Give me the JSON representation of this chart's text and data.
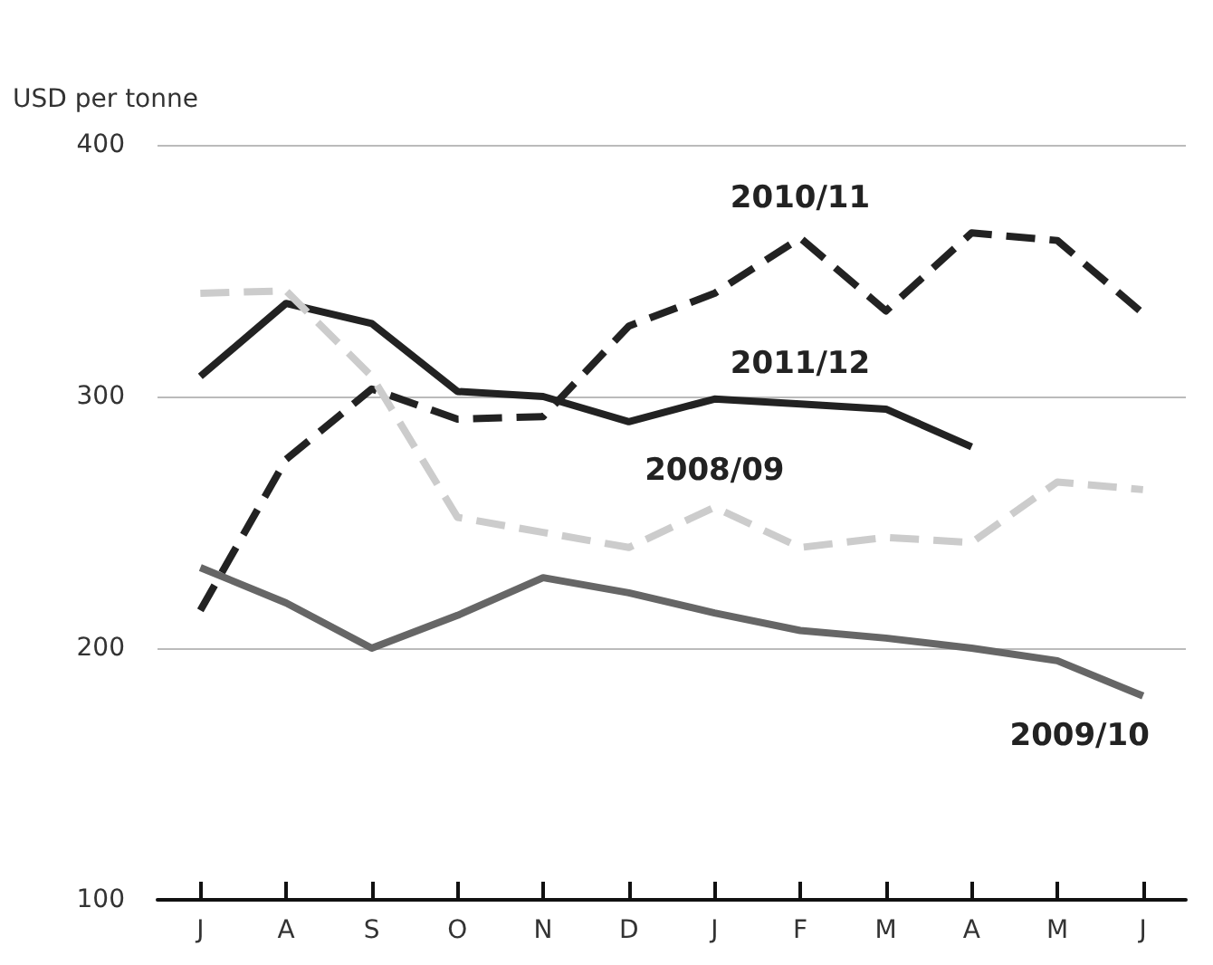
{
  "chart_data": {
    "type": "line",
    "ylabel": "USD per tonne",
    "categories": [
      "J",
      "A",
      "S",
      "O",
      "N",
      "D",
      "J",
      "F",
      "M",
      "A",
      "M",
      "J"
    ],
    "series": [
      {
        "name": "2010/11",
        "color": "#222222",
        "line_style": "dashed",
        "values": [
          215,
          275,
          303,
          291,
          292,
          328,
          341,
          363,
          334,
          365,
          362,
          333
        ]
      },
      {
        "name": "2011/12",
        "color": "#222222",
        "line_style": "solid",
        "values": [
          308,
          337,
          329,
          302,
          300,
          290,
          299,
          297,
          295,
          280,
          null,
          null
        ]
      },
      {
        "name": "2008/09",
        "color": "#cccccc",
        "line_style": "dashed",
        "values": [
          341,
          342,
          308,
          252,
          246,
          240,
          256,
          240,
          244,
          242,
          266,
          263
        ]
      },
      {
        "name": "2009/10",
        "color": "#666666",
        "line_style": "solid",
        "values": [
          232,
          218,
          200,
          213,
          228,
          222,
          214,
          207,
          204,
          200,
          195,
          181
        ]
      }
    ],
    "ylim": [
      100,
      400
    ],
    "yticks": [
      100,
      200,
      300,
      400
    ],
    "grid": "y",
    "legend": false,
    "marker": "none"
  }
}
